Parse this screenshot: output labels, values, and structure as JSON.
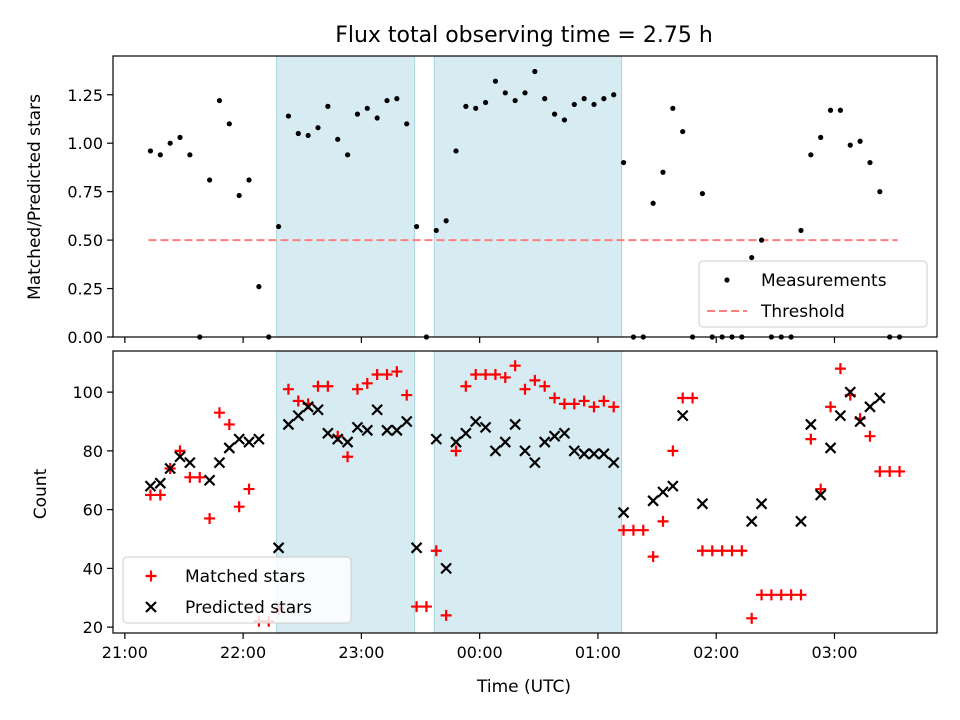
{
  "chart_data": [
    {
      "type": "scatter",
      "title": "Flux total observing time = 2.75 h",
      "xlabel": "",
      "ylabel": "Matched/Predicted stars",
      "xlim": [
        "20:54",
        "03:52"
      ],
      "ylim": [
        0,
        1.45
      ],
      "yticks": [
        "0.00",
        "0.25",
        "0.50",
        "0.75",
        "1.00",
        "1.25"
      ],
      "shaded_spans": [
        [
          "22:17",
          "23:27"
        ],
        [
          "23:37",
          "01:12"
        ]
      ],
      "legend": {
        "placement": "bottom-right",
        "entries": [
          "Measurements",
          "Threshold"
        ]
      },
      "threshold": {
        "name": "Threshold",
        "value": 0.5,
        "x_start": "21:12",
        "x_end": "03:32",
        "color": "#ff7f7f",
        "style": "dashed"
      },
      "series": [
        {
          "name": "Measurements",
          "marker": "dot",
          "color": "#000000",
          "points": [
            [
              "21:13",
              0.96
            ],
            [
              "21:18",
              0.94
            ],
            [
              "21:23",
              1.0
            ],
            [
              "21:28",
              1.03
            ],
            [
              "21:33",
              0.94
            ],
            [
              "21:38",
              0.0
            ],
            [
              "21:43",
              0.81
            ],
            [
              "21:48",
              1.22
            ],
            [
              "21:53",
              1.1
            ],
            [
              "21:58",
              0.73
            ],
            [
              "22:03",
              0.81
            ],
            [
              "22:08",
              0.26
            ],
            [
              "22:13",
              0.0
            ],
            [
              "22:18",
              0.57
            ],
            [
              "22:23",
              1.14
            ],
            [
              "22:28",
              1.05
            ],
            [
              "22:33",
              1.04
            ],
            [
              "22:38",
              1.08
            ],
            [
              "22:43",
              1.19
            ],
            [
              "22:48",
              1.02
            ],
            [
              "22:53",
              0.94
            ],
            [
              "22:58",
              1.15
            ],
            [
              "23:03",
              1.18
            ],
            [
              "23:08",
              1.13
            ],
            [
              "23:13",
              1.22
            ],
            [
              "23:18",
              1.23
            ],
            [
              "23:23",
              1.1
            ],
            [
              "23:28",
              0.57
            ],
            [
              "23:33",
              0.0
            ],
            [
              "23:38",
              0.55
            ],
            [
              "23:43",
              0.6
            ],
            [
              "23:48",
              0.96
            ],
            [
              "23:53",
              1.19
            ],
            [
              "23:58",
              1.18
            ],
            [
              "00:03",
              1.21
            ],
            [
              "00:08",
              1.32
            ],
            [
              "00:13",
              1.26
            ],
            [
              "00:18",
              1.22
            ],
            [
              "00:23",
              1.26
            ],
            [
              "00:28",
              1.37
            ],
            [
              "00:33",
              1.23
            ],
            [
              "00:38",
              1.15
            ],
            [
              "00:43",
              1.12
            ],
            [
              "00:48",
              1.2
            ],
            [
              "00:53",
              1.23
            ],
            [
              "00:58",
              1.2
            ],
            [
              "01:03",
              1.23
            ],
            [
              "01:08",
              1.25
            ],
            [
              "01:13",
              0.9
            ],
            [
              "01:18",
              0.0
            ],
            [
              "01:23",
              0.0
            ],
            [
              "01:28",
              0.69
            ],
            [
              "01:33",
              0.85
            ],
            [
              "01:38",
              1.18
            ],
            [
              "01:43",
              1.06
            ],
            [
              "01:48",
              0.0
            ],
            [
              "01:53",
              0.74
            ],
            [
              "01:58",
              0.0
            ],
            [
              "02:03",
              0.0
            ],
            [
              "02:08",
              0.0
            ],
            [
              "02:13",
              0.0
            ],
            [
              "02:18",
              0.41
            ],
            [
              "02:23",
              0.5
            ],
            [
              "02:28",
              0.0
            ],
            [
              "02:33",
              0.0
            ],
            [
              "02:38",
              0.0
            ],
            [
              "02:43",
              0.55
            ],
            [
              "02:48",
              0.94
            ],
            [
              "02:53",
              1.03
            ],
            [
              "02:58",
              1.17
            ],
            [
              "03:03",
              1.17
            ],
            [
              "03:08",
              0.99
            ],
            [
              "03:13",
              1.01
            ],
            [
              "03:18",
              0.9
            ],
            [
              "03:23",
              0.75
            ],
            [
              "03:28",
              0.0
            ],
            [
              "03:33",
              0.0
            ]
          ]
        }
      ]
    },
    {
      "type": "scatter",
      "title": "",
      "xlabel": "Time (UTC)",
      "ylabel": "Count",
      "xlim": [
        "20:54",
        "03:52"
      ],
      "ylim": [
        18,
        114
      ],
      "yticks": [
        "20",
        "40",
        "60",
        "80",
        "100"
      ],
      "xticks": [
        "21:00",
        "22:00",
        "23:00",
        "00:00",
        "01:00",
        "02:00",
        "03:00"
      ],
      "shaded_spans": [
        [
          "22:17",
          "23:27"
        ],
        [
          "23:37",
          "01:12"
        ]
      ],
      "legend": {
        "placement": "bottom-left",
        "entries": [
          "Matched stars",
          "Predicted stars"
        ]
      },
      "series": [
        {
          "name": "Matched stars",
          "marker": "plus",
          "color": "#ff0000",
          "points": [
            [
              "21:13",
              65
            ],
            [
              "21:18",
              65
            ],
            [
              "21:23",
              74
            ],
            [
              "21:28",
              80
            ],
            [
              "21:33",
              71
            ],
            [
              "21:38",
              71
            ],
            [
              "21:43",
              57
            ],
            [
              "21:48",
              93
            ],
            [
              "21:53",
              89
            ],
            [
              "21:58",
              61
            ],
            [
              "22:03",
              67
            ],
            [
              "22:08",
              22
            ],
            [
              "22:13",
              22
            ],
            [
              "22:18",
              26
            ],
            [
              "22:23",
              101
            ],
            [
              "22:28",
              97
            ],
            [
              "22:33",
              96
            ],
            [
              "22:38",
              102
            ],
            [
              "22:43",
              102
            ],
            [
              "22:48",
              85
            ],
            [
              "22:53",
              78
            ],
            [
              "22:58",
              101
            ],
            [
              "23:03",
              103
            ],
            [
              "23:08",
              106
            ],
            [
              "23:13",
              106
            ],
            [
              "23:18",
              107
            ],
            [
              "23:23",
              99
            ],
            [
              "23:28",
              27
            ],
            [
              "23:33",
              27
            ],
            [
              "23:38",
              46
            ],
            [
              "23:43",
              24
            ],
            [
              "23:48",
              80
            ],
            [
              "23:53",
              102
            ],
            [
              "23:58",
              106
            ],
            [
              "00:03",
              106
            ],
            [
              "00:08",
              106
            ],
            [
              "00:13",
              105
            ],
            [
              "00:18",
              109
            ],
            [
              "00:23",
              101
            ],
            [
              "00:28",
              104
            ],
            [
              "00:33",
              102
            ],
            [
              "00:38",
              98
            ],
            [
              "00:43",
              96
            ],
            [
              "00:48",
              96
            ],
            [
              "00:53",
              97
            ],
            [
              "00:58",
              95
            ],
            [
              "01:03",
              97
            ],
            [
              "01:08",
              95
            ],
            [
              "01:13",
              53
            ],
            [
              "01:18",
              53
            ],
            [
              "01:23",
              53
            ],
            [
              "01:28",
              44
            ],
            [
              "01:33",
              56
            ],
            [
              "01:38",
              80
            ],
            [
              "01:43",
              98
            ],
            [
              "01:48",
              98
            ],
            [
              "01:53",
              46
            ],
            [
              "01:58",
              46
            ],
            [
              "02:03",
              46
            ],
            [
              "02:08",
              46
            ],
            [
              "02:13",
              46
            ],
            [
              "02:18",
              23
            ],
            [
              "02:23",
              31
            ],
            [
              "02:28",
              31
            ],
            [
              "02:33",
              31
            ],
            [
              "02:38",
              31
            ],
            [
              "02:43",
              31
            ],
            [
              "02:48",
              84
            ],
            [
              "02:53",
              67
            ],
            [
              "02:58",
              95
            ],
            [
              "03:03",
              108
            ],
            [
              "03:08",
              99
            ],
            [
              "03:13",
              91
            ],
            [
              "03:18",
              85
            ],
            [
              "03:23",
              73
            ],
            [
              "03:28",
              73
            ],
            [
              "03:33",
              73
            ]
          ]
        },
        {
          "name": "Predicted stars",
          "marker": "x",
          "color": "#000000",
          "points": [
            [
              "21:13",
              68
            ],
            [
              "21:18",
              69
            ],
            [
              "21:23",
              74
            ],
            [
              "21:28",
              78
            ],
            [
              "21:33",
              76
            ],
            [
              "21:43",
              70
            ],
            [
              "21:48",
              76
            ],
            [
              "21:53",
              81
            ],
            [
              "21:58",
              84
            ],
            [
              "22:03",
              83
            ],
            [
              "22:08",
              84
            ],
            [
              "22:18",
              47
            ],
            [
              "22:23",
              89
            ],
            [
              "22:28",
              92
            ],
            [
              "22:33",
              95
            ],
            [
              "22:38",
              94
            ],
            [
              "22:43",
              86
            ],
            [
              "22:48",
              84
            ],
            [
              "22:53",
              83
            ],
            [
              "22:58",
              88
            ],
            [
              "23:03",
              87
            ],
            [
              "23:08",
              94
            ],
            [
              "23:13",
              87
            ],
            [
              "23:18",
              87
            ],
            [
              "23:23",
              90
            ],
            [
              "23:28",
              47
            ],
            [
              "23:38",
              84
            ],
            [
              "23:43",
              40
            ],
            [
              "23:48",
              83
            ],
            [
              "23:53",
              86
            ],
            [
              "23:58",
              90
            ],
            [
              "00:03",
              88
            ],
            [
              "00:08",
              80
            ],
            [
              "00:13",
              83
            ],
            [
              "00:18",
              89
            ],
            [
              "00:23",
              80
            ],
            [
              "00:28",
              76
            ],
            [
              "00:33",
              83
            ],
            [
              "00:38",
              85
            ],
            [
              "00:43",
              86
            ],
            [
              "00:48",
              80
            ],
            [
              "00:53",
              79
            ],
            [
              "00:58",
              79
            ],
            [
              "01:03",
              79
            ],
            [
              "01:08",
              76
            ],
            [
              "01:13",
              59
            ],
            [
              "01:28",
              63
            ],
            [
              "01:33",
              66
            ],
            [
              "01:38",
              68
            ],
            [
              "01:43",
              92
            ],
            [
              "01:53",
              62
            ],
            [
              "02:18",
              56
            ],
            [
              "02:23",
              62
            ],
            [
              "02:43",
              56
            ],
            [
              "02:48",
              89
            ],
            [
              "02:53",
              65
            ],
            [
              "02:58",
              81
            ],
            [
              "03:03",
              92
            ],
            [
              "03:08",
              100
            ],
            [
              "03:13",
              90
            ],
            [
              "03:18",
              95
            ],
            [
              "03:23",
              98
            ]
          ]
        }
      ]
    }
  ]
}
